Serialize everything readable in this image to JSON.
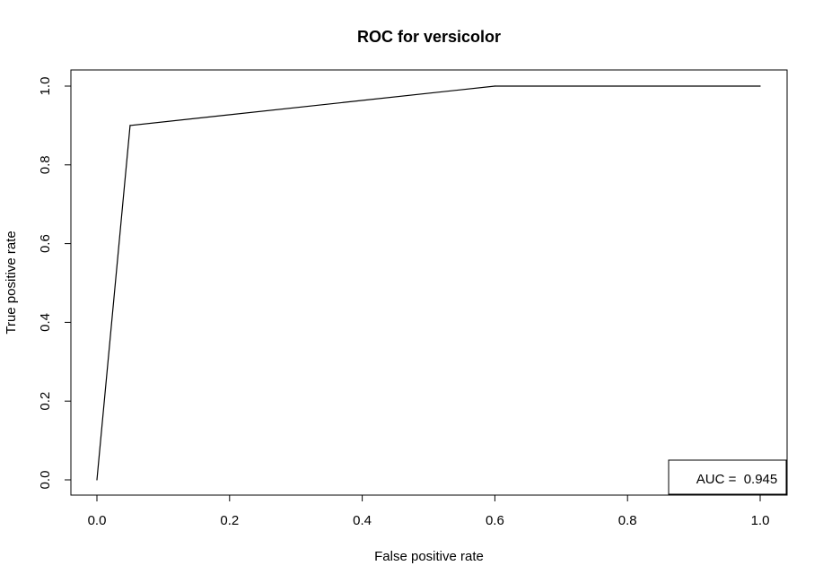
{
  "chart_data": {
    "type": "line",
    "title": "ROC for versicolor",
    "xlabel": "False positive rate",
    "ylabel": "True positive rate",
    "xlim": [
      0,
      1
    ],
    "ylim": [
      0,
      1
    ],
    "x_ticks": [
      "0.0",
      "0.2",
      "0.4",
      "0.6",
      "0.8",
      "1.0"
    ],
    "y_ticks": [
      "0.0",
      "0.2",
      "0.4",
      "0.6",
      "0.8",
      "1.0"
    ],
    "grid": false,
    "series": [
      {
        "x": [
          0,
          0.05,
          0.6,
          1
        ],
        "y": [
          0,
          0.9,
          1,
          1
        ]
      }
    ],
    "legend": {
      "text": "AUC =  0.945",
      "placement": "bottom-right"
    }
  }
}
